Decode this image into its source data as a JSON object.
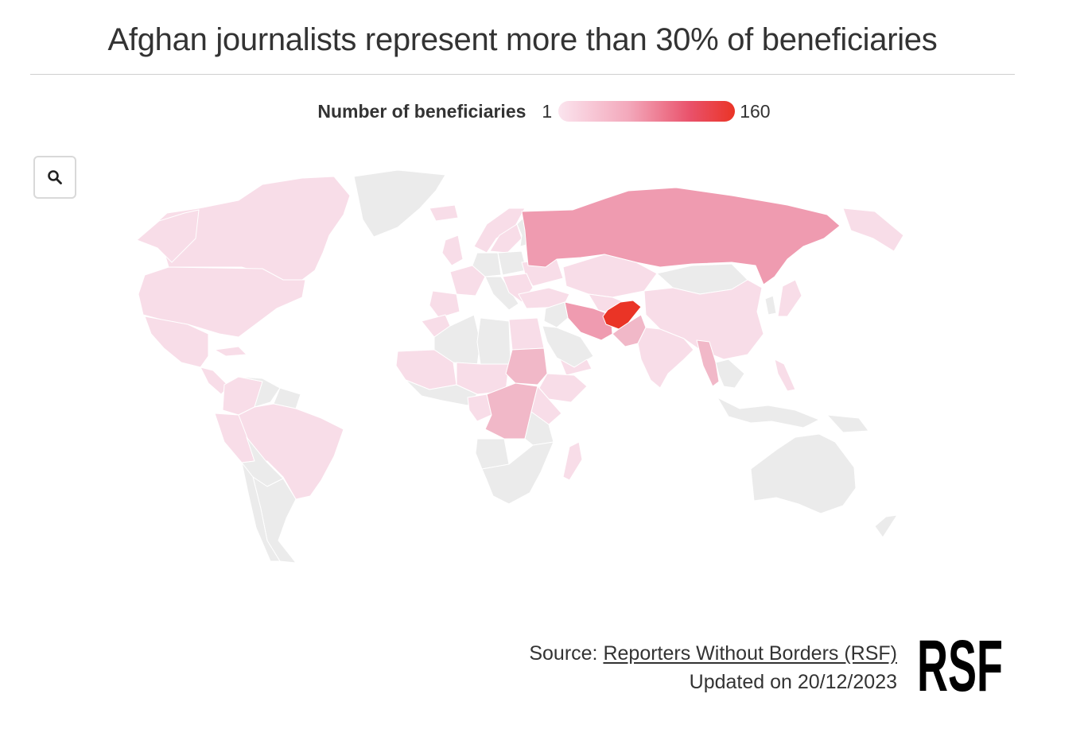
{
  "title": "Afghan journalists represent more than 30% of beneficiaries",
  "legend": {
    "title": "Number of beneficiaries",
    "min": "1",
    "max": "160",
    "min_value": 1,
    "max_value": 160
  },
  "controls": {
    "zoom_icon": "search-icon"
  },
  "colors": {
    "no_data": "#ebebeb",
    "low": "#f8dde8",
    "mid_low": "#f1b8c8",
    "mid": "#ef9bb0",
    "high": "#ea3426"
  },
  "footer": {
    "source_prefix": "Source: ",
    "source_link": "Reporters Without Borders (RSF)",
    "updated": "Updated on 20/12/2023"
  },
  "logo": {
    "text": "RSF"
  }
}
